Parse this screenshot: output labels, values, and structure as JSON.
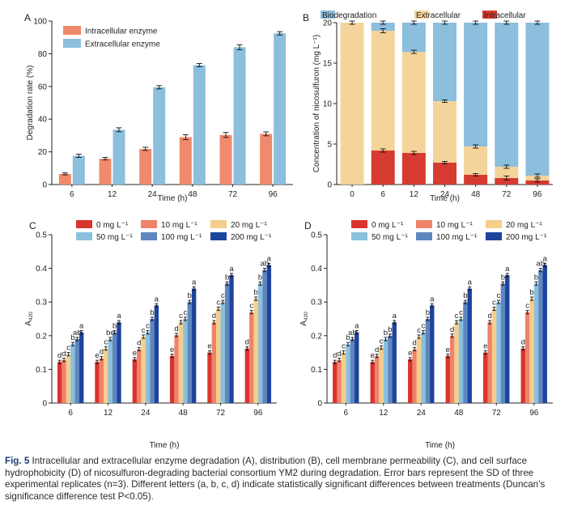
{
  "colors": {
    "intracellular_a": "#F08A6C",
    "extracellular_a": "#8CBEDD",
    "biodegradation": "#8CBEDD",
    "extracellular_b": "#F4D49A",
    "intracellular_b": "#D63B31",
    "conc": [
      "#D9342D",
      "#F0826A",
      "#F4CE8B",
      "#8AC0DD",
      "#5E86BF",
      "#1D449C"
    ]
  },
  "chart_data": [
    {
      "panel": "A",
      "type": "bar",
      "categories": [
        "6",
        "12",
        "24",
        "48",
        "72",
        "96"
      ],
      "series": [
        {
          "name": "Intracellular enzyme",
          "values": [
            6.5,
            15.8,
            21.8,
            29.0,
            30.3,
            31.0
          ],
          "errors": [
            0.6,
            0.8,
            1.0,
            1.5,
            1.5,
            1.2
          ]
        },
        {
          "name": "Extracellular enzyme",
          "values": [
            17.6,
            33.5,
            59.5,
            73.0,
            84.0,
            92.5
          ],
          "errors": [
            1.0,
            1.2,
            1.0,
            1.0,
            1.5,
            1.0
          ]
        }
      ],
      "ylabel": "Degradation rate (%)",
      "xlabel": "Time (h)",
      "ylim": [
        0,
        100
      ],
      "yticks": [
        "0",
        "20",
        "40",
        "60",
        "80",
        "100"
      ]
    },
    {
      "panel": "B",
      "type": "bar",
      "stacked": true,
      "categories": [
        "0",
        "6",
        "12",
        "24",
        "48",
        "72",
        "96"
      ],
      "series": [
        {
          "name": "Intracellular",
          "values": [
            0,
            4.2,
            3.9,
            2.7,
            1.2,
            0.8,
            0.5
          ],
          "errors": [
            0,
            0.2,
            0.2,
            0.15,
            0.15,
            0.25,
            0.2
          ]
        },
        {
          "name": "Extracellular",
          "values": [
            20,
            14.8,
            12.5,
            7.6,
            3.5,
            1.4,
            0.6
          ],
          "errors": [
            0,
            0,
            0,
            0,
            0,
            0,
            0
          ]
        },
        {
          "name": "Biodegradation",
          "values": [
            0,
            1.0,
            3.6,
            9.7,
            15.3,
            17.8,
            18.9
          ],
          "errors": [
            0,
            0,
            0,
            0,
            0,
            0,
            0
          ]
        }
      ],
      "top_errors": [
        0.2,
        0.25,
        0.2,
        0.15,
        0.2,
        0.2,
        0.2
      ],
      "ylabel": "Concentration of nicosulfuron (mg L⁻¹)",
      "xlabel": "Time (h)",
      "ylim": [
        0,
        20
      ],
      "yticks": [
        "0",
        "5",
        "10",
        "15",
        "20"
      ]
    },
    {
      "panel": "C",
      "type": "bar",
      "categories": [
        "6",
        "12",
        "24",
        "48",
        "72",
        "96"
      ],
      "series": [
        {
          "name": "0 mg L⁻¹",
          "values": [
            0.122,
            0.122,
            0.13,
            0.14,
            0.15,
            0.162
          ],
          "letters": [
            "d",
            "e",
            "e",
            "e",
            "e",
            "d"
          ]
        },
        {
          "name": "10 mg L⁻¹",
          "values": [
            0.128,
            0.133,
            0.16,
            0.202,
            0.24,
            0.27
          ],
          "letters": [
            "d",
            "d",
            "d",
            "d",
            "d",
            "c"
          ]
        },
        {
          "name": "20 mg L⁻¹",
          "values": [
            0.145,
            0.162,
            0.197,
            0.24,
            0.28,
            0.31
          ],
          "letters": [
            "c",
            "c",
            "c",
            "c",
            "c",
            "b"
          ]
        },
        {
          "name": "50 mg L⁻¹",
          "values": [
            0.175,
            0.19,
            0.21,
            0.25,
            0.3,
            0.355
          ],
          "letters": [
            "b",
            "bc",
            "c",
            "c",
            "c",
            "b"
          ]
        },
        {
          "name": "100 mg L⁻¹",
          "values": [
            0.19,
            0.21,
            0.25,
            0.3,
            0.355,
            0.395
          ],
          "letters": [
            "ab",
            "b",
            "b",
            "b",
            "b",
            "ab"
          ]
        },
        {
          "name": "200 mg L⁻¹",
          "values": [
            0.21,
            0.24,
            0.29,
            0.34,
            0.38,
            0.41
          ],
          "letters": [
            "a",
            "a",
            "a",
            "a",
            "a",
            "a"
          ]
        }
      ],
      "ylabel": "A",
      "ylabel_sub": "420",
      "xlabel": "Time (h)",
      "ylim": [
        0,
        0.5
      ],
      "yticks": [
        "0",
        "0.1",
        "0.2",
        "0.3",
        "0.4",
        "0.5"
      ]
    },
    {
      "panel": "D",
      "type": "bar",
      "categories": [
        "6",
        "12",
        "24",
        "48",
        "72",
        "96"
      ],
      "series": [
        {
          "name": "0 mg L⁻¹",
          "values": [
            0.122,
            0.122,
            0.13,
            0.14,
            0.15,
            0.162
          ],
          "letters": [
            "d",
            "e",
            "e",
            "e",
            "e",
            "d"
          ]
        },
        {
          "name": "10 mg L⁻¹",
          "values": [
            0.128,
            0.14,
            0.16,
            0.2,
            0.24,
            0.27
          ],
          "letters": [
            "d",
            "d",
            "d",
            "d",
            "d",
            "c"
          ]
        },
        {
          "name": "20 mg L⁻¹",
          "values": [
            0.15,
            0.165,
            0.197,
            0.24,
            0.28,
            0.31
          ],
          "letters": [
            "c",
            "c",
            "c",
            "c",
            "c",
            "b"
          ]
        },
        {
          "name": "50 mg L⁻¹",
          "values": [
            0.175,
            0.19,
            0.21,
            0.25,
            0.3,
            0.355
          ],
          "letters": [
            "b",
            "b",
            "c",
            "c",
            "c",
            "b"
          ]
        },
        {
          "name": "100 mg L⁻¹",
          "values": [
            0.19,
            0.2,
            0.25,
            0.3,
            0.355,
            0.395
          ],
          "letters": [
            "ab",
            "b",
            "b",
            "b",
            "b",
            "ab"
          ]
        },
        {
          "name": "200 mg L⁻¹",
          "values": [
            0.21,
            0.24,
            0.29,
            0.34,
            0.38,
            0.41
          ],
          "letters": [
            "a",
            "a",
            "a",
            "a",
            "a",
            "a"
          ]
        }
      ],
      "ylabel": "A",
      "ylabel_sub": "420",
      "xlabel": "Time (h)",
      "ylim": [
        0,
        0.5
      ],
      "yticks": [
        "0",
        "0.1",
        "0.2",
        "0.3",
        "0.4",
        "0.5"
      ]
    }
  ],
  "caption": {
    "label": "Fig. 5",
    "text": "Intracellular and extracellular enzyme degradation (A), distribution (B), cell membrane permeability (C), and cell surface hydrophobicity (D) of nicosulfuron-degrading bacterial consortium YM2 during degradation. Error bars represent the SD of three experimental replicates (n=3). Different letters (a, b, c, d) indicate statistically significant differences between treatments (Duncan’s significance difference test P<0.05)."
  }
}
